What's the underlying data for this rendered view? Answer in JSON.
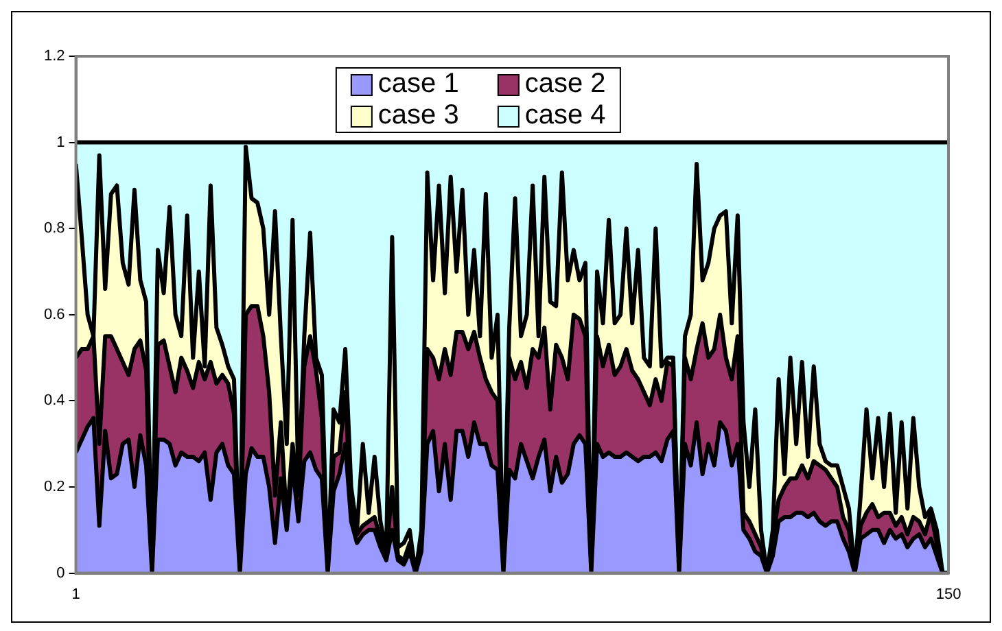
{
  "chart_data": {
    "type": "area",
    "stacked": true,
    "legend": "top",
    "x": [
      1,
      2,
      3,
      4,
      5,
      6,
      7,
      8,
      9,
      10,
      11,
      12,
      13,
      14,
      15,
      16,
      17,
      18,
      19,
      20,
      21,
      22,
      23,
      24,
      25,
      26,
      27,
      28,
      29,
      30,
      31,
      32,
      33,
      34,
      35,
      36,
      37,
      38,
      39,
      40,
      41,
      42,
      43,
      44,
      45,
      46,
      47,
      48,
      49,
      50,
      51,
      52,
      53,
      54,
      55,
      56,
      57,
      58,
      59,
      60,
      61,
      62,
      63,
      64,
      65,
      66,
      67,
      68,
      69,
      70,
      71,
      72,
      73,
      74,
      75,
      76,
      77,
      78,
      79,
      80,
      81,
      82,
      83,
      84,
      85,
      86,
      87,
      88,
      89,
      90,
      91,
      92,
      93,
      94,
      95,
      96,
      97,
      98,
      99,
      100,
      101,
      102,
      103,
      104,
      105,
      106,
      107,
      108,
      109,
      110,
      111,
      112,
      113,
      114,
      115,
      116,
      117,
      118,
      119,
      120,
      121,
      122,
      123,
      124,
      125,
      126,
      127,
      128,
      129,
      130,
      131,
      132,
      133,
      134,
      135,
      136,
      137,
      138,
      139,
      140,
      141,
      142,
      143,
      144,
      145,
      146,
      147,
      148,
      149,
      150
    ],
    "xlim": [
      1,
      150
    ],
    "xticks": [
      1,
      150
    ],
    "ylim": [
      0,
      1.2
    ],
    "yticks": [
      0,
      0.2,
      0.4,
      0.6,
      0.8,
      1,
      1.2
    ],
    "series": [
      {
        "name": "case 1",
        "color": "#9999ff",
        "values": [
          0.28,
          0.31,
          0.34,
          0.36,
          0.11,
          0.33,
          0.22,
          0.23,
          0.3,
          0.31,
          0.2,
          0.32,
          0.25,
          0,
          0.31,
          0.31,
          0.3,
          0.25,
          0.28,
          0.27,
          0.27,
          0.26,
          0.28,
          0.17,
          0.28,
          0.3,
          0.25,
          0.23,
          0,
          0.23,
          0.29,
          0.27,
          0.27,
          0.2,
          0.07,
          0.22,
          0.1,
          0.25,
          0.12,
          0.26,
          0.28,
          0.24,
          0.22,
          0,
          0.19,
          0.23,
          0.3,
          0.12,
          0.07,
          0.09,
          0.1,
          0.1,
          0.06,
          0.03,
          0.1,
          0.03,
          0.02,
          0.05,
          0,
          0.05,
          0.3,
          0.33,
          0.19,
          0.3,
          0.17,
          0.33,
          0.33,
          0.27,
          0.35,
          0.3,
          0.3,
          0.25,
          0.24,
          0,
          0.24,
          0.22,
          0.3,
          0.26,
          0.22,
          0.27,
          0.31,
          0.19,
          0.27,
          0.21,
          0.23,
          0.3,
          0.32,
          0.3,
          0,
          0.3,
          0.27,
          0.28,
          0.27,
          0.27,
          0.28,
          0.27,
          0.26,
          0.27,
          0.27,
          0.28,
          0.26,
          0.31,
          0.33,
          0,
          0.3,
          0.25,
          0.35,
          0.23,
          0.3,
          0.25,
          0.35,
          0.33,
          0.25,
          0.3,
          0.1,
          0.08,
          0.05,
          0.04,
          0,
          0.04,
          0.12,
          0.13,
          0.13,
          0.14,
          0.14,
          0.13,
          0.14,
          0.12,
          0.11,
          0.12,
          0.12,
          0.08,
          0.05,
          0,
          0.08,
          0.09,
          0.1,
          0.1,
          0.07,
          0.1,
          0.08,
          0.09,
          0.06,
          0.08,
          0.09,
          0.06,
          0.08,
          0.04,
          0,
          0
        ]
      },
      {
        "name": "case 2",
        "color": "#993366",
        "values": [
          0.22,
          0.21,
          0.18,
          0.19,
          0.19,
          0.22,
          0.33,
          0.29,
          0.19,
          0.15,
          0.32,
          0.22,
          0.22,
          0,
          0.22,
          0.23,
          0.18,
          0.17,
          0.22,
          0.2,
          0.16,
          0.23,
          0.17,
          0.32,
          0.16,
          0.16,
          0.19,
          0.14,
          0,
          0.37,
          0.33,
          0.35,
          0.28,
          0.22,
          0.11,
          0.13,
          0.02,
          0.05,
          0.06,
          0.22,
          0.27,
          0.23,
          0.14,
          0,
          0.08,
          0.05,
          0.12,
          0.02,
          0.02,
          0.02,
          0.02,
          0.03,
          0.02,
          0.01,
          0.1,
          0.01,
          0.01,
          0.02,
          0,
          0.02,
          0.22,
          0.17,
          0.26,
          0.22,
          0.29,
          0.23,
          0.23,
          0.25,
          0.21,
          0.2,
          0.15,
          0.17,
          0.16,
          0,
          0.26,
          0.23,
          0.19,
          0.17,
          0.3,
          0.23,
          0.26,
          0.19,
          0.26,
          0.29,
          0.22,
          0.3,
          0.27,
          0.25,
          0,
          0.25,
          0.21,
          0.25,
          0.19,
          0.21,
          0.24,
          0.2,
          0.19,
          0.15,
          0.12,
          0.17,
          0.14,
          0.18,
          0.15,
          0,
          0.2,
          0.2,
          0.17,
          0.35,
          0.2,
          0.27,
          0.25,
          0.17,
          0.2,
          0.25,
          0.04,
          0.04,
          0.04,
          0.02,
          0,
          0.04,
          0.05,
          0.07,
          0.09,
          0.08,
          0.11,
          0.09,
          0.12,
          0.13,
          0.13,
          0.1,
          0.08,
          0.05,
          0.05,
          0,
          0.03,
          0.05,
          0.06,
          0.03,
          0.07,
          0.04,
          0.03,
          0.04,
          0.03,
          0.05,
          0.03,
          0.03,
          0.06,
          0.03,
          0,
          0
        ]
      },
      {
        "name": "case 3",
        "color": "#ffffcc",
        "values": [
          0.45,
          0.26,
          0.08,
          0,
          0.67,
          0.11,
          0.33,
          0.38,
          0.23,
          0.21,
          0.37,
          0.14,
          0.16,
          0,
          0.22,
          0.11,
          0.37,
          0.18,
          0.05,
          0.36,
          0.07,
          0.21,
          0.03,
          0.41,
          0.13,
          0.07,
          0.04,
          0.08,
          0,
          0.39,
          0.25,
          0.24,
          0.25,
          0.18,
          0.66,
          0.2,
          0.18,
          0.52,
          0.02,
          0.07,
          0.24,
          0.03,
          0.1,
          0,
          0.11,
          0.07,
          0.1,
          0.06,
          0.01,
          0.19,
          0.02,
          0.14,
          0.04,
          0.01,
          0.58,
          0.02,
          0.04,
          0.03,
          0,
          0.03,
          0.41,
          0.18,
          0.45,
          0.13,
          0.46,
          0.14,
          0.33,
          0.08,
          0.19,
          0.05,
          0.43,
          0.08,
          0.2,
          0,
          0.07,
          0.42,
          0.06,
          0.17,
          0.38,
          0.05,
          0.35,
          0.25,
          0.09,
          0.43,
          0.23,
          0.15,
          0.09,
          0.17,
          0,
          0.15,
          0.1,
          0.29,
          0.12,
          0.12,
          0.28,
          0.11,
          0.3,
          0.08,
          0.09,
          0.35,
          0.08,
          0.01,
          0.02,
          0,
          0.05,
          0.15,
          0.43,
          0.1,
          0.22,
          0.28,
          0.23,
          0.34,
          0.13,
          0.28,
          0.21,
          0.08,
          0.29,
          0.04,
          0,
          0.02,
          0.28,
          0.03,
          0.28,
          0.08,
          0.24,
          0.05,
          0.22,
          0.05,
          0.02,
          0.03,
          0.05,
          0.07,
          0.05,
          0,
          0.07,
          0.24,
          0.06,
          0.23,
          0.06,
          0.23,
          0.03,
          0.22,
          0.06,
          0.23,
          0.08,
          0.04,
          0.01,
          0.03,
          0,
          0
        ]
      },
      {
        "name": "case 4",
        "color": "#ccffff",
        "values": [
          0.05,
          0.22,
          0.4,
          0.45,
          0.03,
          0.34,
          0.12,
          0.1,
          0.28,
          0.33,
          0.11,
          0.32,
          0.37,
          1,
          0.25,
          0.35,
          0.15,
          0.4,
          0.45,
          0.17,
          0.5,
          0.3,
          0.52,
          0.1,
          0.43,
          0.47,
          0.52,
          0.55,
          1,
          0.01,
          0.13,
          0.14,
          0.2,
          0.4,
          0.16,
          0.45,
          0.7,
          0.18,
          0.8,
          0.45,
          0.21,
          0.5,
          0.54,
          1,
          0.62,
          0.65,
          0.48,
          0.8,
          0.9,
          0.7,
          0.86,
          0.73,
          0.88,
          0.95,
          0.22,
          0.94,
          0.93,
          0.9,
          1,
          0.9,
          0.07,
          0.32,
          0.1,
          0.35,
          0.08,
          0.3,
          0.11,
          0.4,
          0.25,
          0.45,
          0.12,
          0.5,
          0.4,
          1,
          0.43,
          0.13,
          0.45,
          0.4,
          0.1,
          0.45,
          0.08,
          0.37,
          0.38,
          0.07,
          0.32,
          0.25,
          0.32,
          0.28,
          1,
          0.3,
          0.42,
          0.18,
          0.42,
          0.4,
          0.2,
          0.42,
          0.25,
          0.5,
          0.52,
          0.2,
          0.52,
          0.5,
          0.5,
          1,
          0.45,
          0.4,
          0.05,
          0.32,
          0.28,
          0.2,
          0.17,
          0.16,
          0.42,
          0.17,
          0.65,
          0.8,
          0.62,
          0.9,
          1,
          0.9,
          0.55,
          0.77,
          0.5,
          0.7,
          0.51,
          0.73,
          0.52,
          0.7,
          0.74,
          0.75,
          0.75,
          0.8,
          0.85,
          1,
          0.82,
          0.62,
          0.78,
          0.64,
          0.8,
          0.63,
          0.86,
          0.65,
          0.85,
          0.64,
          0.8,
          0.87,
          0.85,
          0.9,
          1,
          1
        ]
      }
    ]
  }
}
